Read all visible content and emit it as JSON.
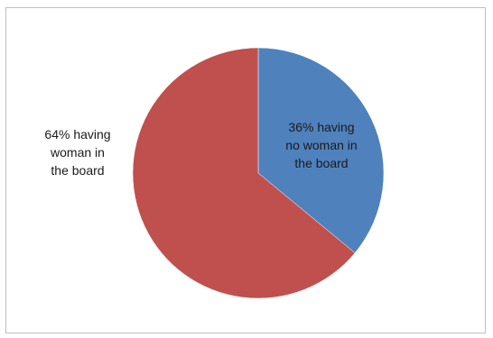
{
  "chart_data": {
    "type": "pie",
    "title": "",
    "legend": "none",
    "slices": [
      {
        "label": "36% having no woman in the board",
        "label_lines": [
          "36% having",
          "no woman in",
          "the board"
        ],
        "value": 36,
        "color": "#4f81bd"
      },
      {
        "label": "64% having woman in the board",
        "label_lines": [
          "64% having",
          "woman in",
          "the board"
        ],
        "value": 64,
        "color": "#c0504d"
      }
    ]
  }
}
